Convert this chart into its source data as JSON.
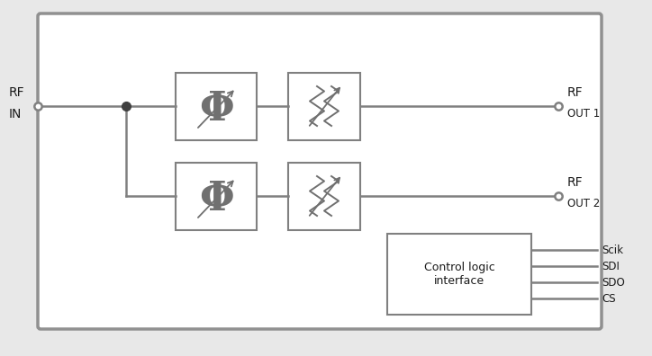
{
  "bg_color": "#e8e8e8",
  "inner_bg": "#ffffff",
  "box_color": "#ffffff",
  "line_color": "#808080",
  "text_color": "#1a1a1a",
  "symbol_color": "#707070",
  "rf_in_label_1": "RF",
  "rf_in_label_2": "IN",
  "rf_out1_label_1": "RF",
  "rf_out1_label_2": "OUT 1",
  "rf_out2_label_1": "RF",
  "rf_out2_label_2": "OUT 2",
  "control_label": "Control logic\ninterface",
  "spi_labels": [
    "Scik",
    "SDI",
    "SDO",
    "CS"
  ]
}
